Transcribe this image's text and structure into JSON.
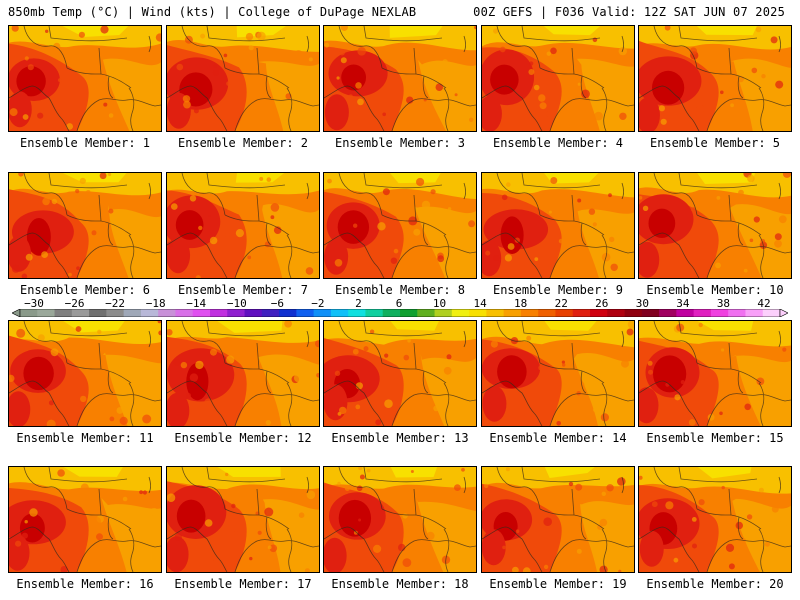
{
  "header": {
    "left": "850mb Temp (°C) | Wind (kts) | College of DuPage NEXLAB",
    "right": "00Z GEFS | F036 Valid: 12Z SAT JUN 07 2025"
  },
  "panels": [
    {
      "label": "Ensemble Member: 1"
    },
    {
      "label": "Ensemble Member: 2"
    },
    {
      "label": "Ensemble Member: 3"
    },
    {
      "label": "Ensemble Member: 4"
    },
    {
      "label": "Ensemble Member: 5"
    },
    {
      "label": "Ensemble Member: 6"
    },
    {
      "label": "Ensemble Member: 7"
    },
    {
      "label": "Ensemble Member: 8"
    },
    {
      "label": "Ensemble Member: 9"
    },
    {
      "label": "Ensemble Member: 10"
    },
    {
      "label": "Ensemble Member: 11"
    },
    {
      "label": "Ensemble Member: 12"
    },
    {
      "label": "Ensemble Member: 13"
    },
    {
      "label": "Ensemble Member: 14"
    },
    {
      "label": "Ensemble Member: 15"
    },
    {
      "label": "Ensemble Member: 16"
    },
    {
      "label": "Ensemble Member: 17"
    },
    {
      "label": "Ensemble Member: 18"
    },
    {
      "label": "Ensemble Member: 19"
    },
    {
      "label": "Ensemble Member: 20"
    }
  ],
  "colorbar": {
    "labels": [
      "−30",
      "−26",
      "−22",
      "−18",
      "−14",
      "−10",
      "−6",
      "−2",
      "2",
      "6",
      "10",
      "14",
      "18",
      "22",
      "26",
      "30",
      "34",
      "38",
      "42"
    ],
    "colors": [
      "#8a9a8a",
      "#9aa89a",
      "#808080",
      "#9a9a9a",
      "#707070",
      "#8c8c8c",
      "#9fa8b8",
      "#b8b8d8",
      "#c890d8",
      "#d870e8",
      "#e050f0",
      "#c030e0",
      "#9020d0",
      "#6010c0",
      "#4020c0",
      "#1030d0",
      "#1060f0",
      "#1090f8",
      "#10c0f8",
      "#10e0e0",
      "#10d0a0",
      "#10b060",
      "#10a030",
      "#60b020",
      "#b0d020",
      "#f0f010",
      "#f8e000",
      "#f8c000",
      "#f8a000",
      "#f88000",
      "#f06000",
      "#e84000",
      "#e02010",
      "#d00010",
      "#b00010",
      "#900010",
      "#800020",
      "#a00060",
      "#c000a0",
      "#e020c0",
      "#f040e0",
      "#f070f0",
      "#f8a0f8",
      "#fcd0fc"
    ]
  },
  "map": {
    "colors": {
      "deep": "#c80000",
      "red": "#e02010",
      "orange_red": "#f04a0a",
      "orange": "#f88000",
      "amber": "#f8a000",
      "gold": "#f8c000",
      "yellow": "#f8e000"
    }
  }
}
